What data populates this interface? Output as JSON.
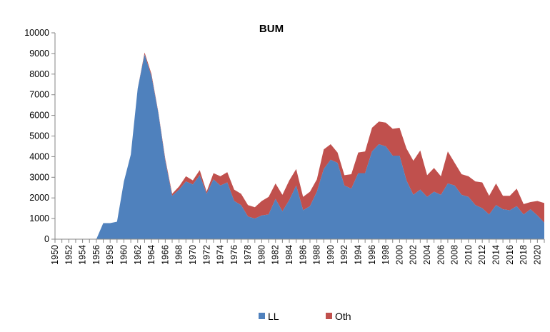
{
  "chart_data": {
    "type": "area",
    "stacked": true,
    "title": "BUM",
    "xlabel": "",
    "ylabel": "",
    "ylim": [
      0,
      10000
    ],
    "yticks": [
      0,
      1000,
      2000,
      3000,
      4000,
      5000,
      6000,
      7000,
      8000,
      9000,
      10000
    ],
    "x_tick_labels": [
      "1950",
      "1952",
      "1954",
      "1956",
      "1958",
      "1960",
      "1962",
      "1964",
      "1966",
      "1968",
      "1970",
      "1972",
      "1974",
      "1976",
      "1978",
      "1980",
      "1982",
      "1984",
      "1986",
      "1988",
      "1990",
      "1992",
      "1994",
      "1996",
      "1998",
      "2000",
      "2002",
      "2004",
      "2006",
      "2008",
      "2010",
      "2012",
      "2014",
      "2016",
      "2018",
      "2020"
    ],
    "grid": false,
    "legend_position": "bottom",
    "x": [
      1950,
      1951,
      1952,
      1953,
      1954,
      1955,
      1956,
      1957,
      1958,
      1959,
      1960,
      1961,
      1962,
      1963,
      1964,
      1965,
      1966,
      1967,
      1968,
      1969,
      1970,
      1971,
      1972,
      1973,
      1974,
      1975,
      1976,
      1977,
      1978,
      1979,
      1980,
      1981,
      1982,
      1983,
      1984,
      1985,
      1986,
      1987,
      1988,
      1989,
      1990,
      1991,
      1992,
      1993,
      1994,
      1995,
      1996,
      1997,
      1998,
      1999,
      2000,
      2001,
      2002,
      2003,
      2004,
      2005,
      2006,
      2007,
      2008,
      2009,
      2010,
      2011,
      2012,
      2013,
      2014,
      2015,
      2016,
      2017,
      2018,
      2019,
      2020,
      2021
    ],
    "series": [
      {
        "name": "LL",
        "color": "#4F81BD",
        "values": [
          0,
          0,
          0,
          0,
          0,
          0,
          0,
          780,
          780,
          850,
          2800,
          4100,
          7300,
          8950,
          7900,
          6100,
          3800,
          2100,
          2400,
          2800,
          2650,
          3100,
          2200,
          2900,
          2600,
          2750,
          1850,
          1650,
          1100,
          1000,
          1150,
          1200,
          1950,
          1350,
          1900,
          2600,
          1400,
          1600,
          2300,
          3400,
          3850,
          3700,
          2600,
          2450,
          3200,
          3200,
          4250,
          4600,
          4500,
          4050,
          4050,
          2850,
          2150,
          2400,
          2050,
          2300,
          2150,
          2700,
          2600,
          2150,
          2050,
          1650,
          1500,
          1200,
          1650,
          1450,
          1400,
          1600,
          1200,
          1450,
          1150,
          800
        ]
      },
      {
        "name": "Oth",
        "color": "#C0504D",
        "values": [
          0,
          0,
          0,
          0,
          0,
          0,
          0,
          0,
          0,
          0,
          0,
          0,
          0,
          100,
          100,
          50,
          100,
          100,
          150,
          250,
          200,
          250,
          100,
          300,
          450,
          500,
          550,
          550,
          550,
          550,
          700,
          850,
          750,
          800,
          950,
          800,
          650,
          700,
          600,
          950,
          750,
          500,
          500,
          700,
          1000,
          1050,
          1150,
          1100,
          1150,
          1300,
          1350,
          1550,
          1650,
          1900,
          1050,
          1150,
          900,
          1550,
          1100,
          1000,
          1000,
          1150,
          1250,
          900,
          1050,
          650,
          700,
          850,
          500,
          350,
          700,
          950
        ]
      }
    ]
  }
}
